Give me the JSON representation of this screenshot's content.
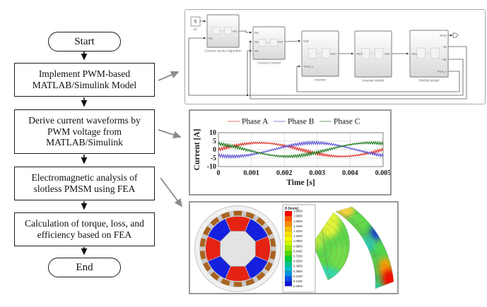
{
  "flowchart": {
    "start_label": "Start",
    "end_label": "End",
    "steps": [
      {
        "label": "Implement PWM-based MATLAB/Simulink Model"
      },
      {
        "label": "Derive current waveforms by PWM voltage from MATLAB/Simulink"
      },
      {
        "label": "Electromagnetic analysis of slotless PMSM using FEA"
      },
      {
        "label": "Calculation of torque, loss, and efficiency based on FEA"
      }
    ]
  },
  "simulink": {
    "source_block": {
      "value": "5",
      "label": "Iq*"
    },
    "blocks": [
      {
        "name": "Current Vector Algorithm",
        "inputs": [
          "",
          "We"
        ],
        "outputs": [
          "Idq*"
        ]
      },
      {
        "name": "Current Control",
        "inputs": [
          "Idq*",
          "Idq",
          "We"
        ],
        "outputs": [
          "Vdq*"
        ]
      },
      {
        "name": "Inverter",
        "inputs": [
          "Vdq*",
          "Theta_e"
        ],
        "outputs": [
          "Vabc*"
        ]
      },
      {
        "name": "Inverter Model",
        "inputs": [
          "Vabc*"
        ],
        "outputs": [
          "Vabc"
        ]
      },
      {
        "name": "PMSM Model",
        "inputs": [
          "Vabc"
        ],
        "outputs": [
          "Wrpm",
          "Idq",
          "We",
          "Theta_e"
        ]
      }
    ]
  },
  "chart_data": {
    "type": "line",
    "title": "",
    "xlabel": "Time [s]",
    "ylabel": "Current [A]",
    "xlim": [
      0,
      0.005
    ],
    "ylim": [
      -10,
      10
    ],
    "xticks": [
      0,
      0.001,
      0.002,
      0.003,
      0.004,
      0.005
    ],
    "xtick_labels": [
      "0",
      "0.001",
      "0.002",
      "0.003",
      "0.004",
      "0.005"
    ],
    "yticks": [
      10,
      5,
      0,
      -5,
      -10
    ],
    "grid": true,
    "legend_position": "top",
    "waveform": {
      "fundamental_hz": 200,
      "period_s": 0.005,
      "amplitude_A": 4,
      "pwm_ripple_A": 0.85
    },
    "series": [
      {
        "name": "Phase A",
        "color": "#dd3128",
        "legend_color": "#f0a09a",
        "phase_deg": 0
      },
      {
        "name": "Phase B",
        "color": "#5a50d2",
        "legend_color": "#b2abe4",
        "phase_deg": -120
      },
      {
        "name": "Phase C",
        "color": "#1d7a1d",
        "legend_color": "#9cc49c",
        "phase_deg": 120
      }
    ]
  },
  "fea": {
    "colorbar": {
      "title": "B [tesla]",
      "values": [
        "1.8000",
        "1.6800",
        "1.5600",
        "1.4400",
        "1.3200",
        "1.2000",
        "1.0800",
        "0.9600",
        "0.8400",
        "0.7200",
        "0.6000",
        "0.4800",
        "0.3600",
        "0.2400",
        "0.1200",
        "0.0000"
      ],
      "colors": [
        "#fe0000",
        "#ff5300",
        "#ff8800",
        "#ffbb00",
        "#ffe200",
        "#fdfd00",
        "#ccf600",
        "#92e800",
        "#4eda00",
        "#00cf32",
        "#00c786",
        "#00bdc2",
        "#0092e0",
        "#0050e8",
        "#0d13d5"
      ]
    },
    "motor": {
      "magnet_pole_count": 8,
      "magnet_colors": [
        "#e42313",
        "#1420dd"
      ],
      "coil_segment_count": 18,
      "coil_color": "#a9631f",
      "core_color": "#e3e3e3"
    }
  }
}
